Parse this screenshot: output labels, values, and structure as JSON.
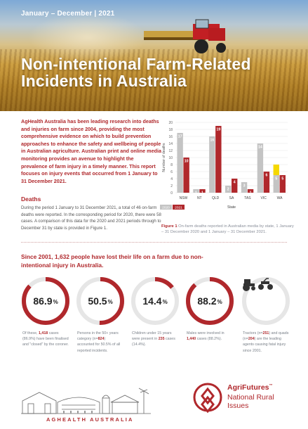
{
  "hero": {
    "period": "January – December | 2021",
    "title_line1": "Non-intentional Farm-Related",
    "title_line2": "Incidents in Australia"
  },
  "intro": "AgHealth Australia has been leading research into deaths and injuries on farm since 2004, providing the most comprehensive evidence on which to build prevention approaches to enhance the safety and wellbeing of people in Australian agriculture. Australian print and online media monitoring provides an avenue to highlight the prevalence of farm injury in a timely manner. This report focuses on injury events that occurred from 1 January to 31 December 2021.",
  "deaths": {
    "heading": "Deaths",
    "text": "During the period 1 January to 31 December 2021, a total of 46 on-farm deaths were reported. In the corresponding period for 2020, there were 58 cases. A comparison of this data for the 2020 and 2021 periods through to December 31 by state is provided in Figure 1."
  },
  "colors": {
    "brand_red": "#b0282c",
    "grey_bar": "#c4c4c4",
    "highlight": "#f5d800"
  },
  "chart_data": {
    "type": "bar",
    "categories": [
      "NSW",
      "NT",
      "QLD",
      "SA",
      "TAS",
      "VIC",
      "WA"
    ],
    "series": [
      {
        "name": "2020",
        "values": [
          17,
          1,
          16,
          2,
          3,
          14,
          5
        ]
      },
      {
        "name": "2021",
        "values": [
          10,
          1,
          19,
          4,
          1,
          6,
          5
        ]
      }
    ],
    "xlabel": "State",
    "ylabel": "Number of deaths",
    "ylim": [
      0,
      20
    ],
    "yticks": [
      0,
      2,
      4,
      6,
      8,
      10,
      12,
      14,
      16,
      18,
      20
    ],
    "grid": true,
    "legend": "bottom-left"
  },
  "caption": {
    "label": "Figure 1",
    "text": " On-farm deaths reported in Australian media by state, 1 January – 31 December 2020 and 1 January – 31 December 2021."
  },
  "since": "Since 2001, 1,632 people have lost their life on a farm due to non-intentional injury in Australia.",
  "stats": [
    {
      "value": "86.9",
      "unit": "%",
      "fraction": 0.869,
      "pre": "Of these, ",
      "bold": "1,418",
      "post": " cases (86.9%) have been finalised and \"closed\" by the coroner."
    },
    {
      "value": "50.5",
      "unit": "%",
      "fraction": 0.505,
      "pre": "Persons in the 50+ years category (n=",
      "bold": "824",
      "post": ") accounted for 50.5% of all reported incidents."
    },
    {
      "value": "14.4",
      "unit": "%",
      "fraction": 0.144,
      "pre": "Children under 15 years were present in ",
      "bold": "235",
      "post": " cases (14.4%)."
    },
    {
      "value": "88.2",
      "unit": "%",
      "fraction": 0.882,
      "pre": "Males were involved in ",
      "bold": "1,440",
      "post": " cases (88.2%)."
    },
    {
      "icon": "tractor-quad-icon",
      "pre": "Tractors (n=",
      "bold": "251",
      "mid": ") and quads (n=",
      "bold2": "204",
      "post": ") are the leading agents causing fatal injury since 2001."
    }
  ],
  "footer": {
    "aghealth": "AGHEALTH AUSTRALIA",
    "agrifutures": "AgriFutures",
    "tm": "™",
    "nri_line1": "National Rural",
    "nri_line2": "Issues"
  }
}
